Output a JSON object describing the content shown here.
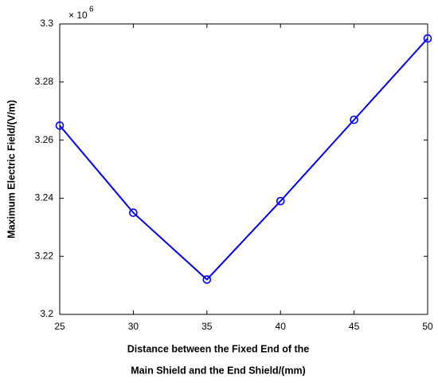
{
  "chart_data": {
    "type": "line",
    "x_label_lines": [
      "Distance between the Fixed End of the",
      "Main Shield and the End Shield/(mm)"
    ],
    "y_label": "Maximum Electric Field/(V/m)",
    "y_multiplier_base": "× 10",
    "y_multiplier_exponent": "6",
    "x": [
      25,
      30,
      35,
      40,
      45,
      50
    ],
    "series": [
      {
        "color": "#0000ff",
        "values": [
          3.265,
          3.235,
          3.212,
          3.239,
          3.267,
          3.295
        ]
      }
    ],
    "xlim": [
      25,
      50
    ],
    "xticks": [
      25,
      30,
      35,
      40,
      45,
      50
    ],
    "ylim": [
      3.2,
      3.3
    ],
    "yticks": [
      3.2,
      3.22,
      3.24,
      3.26,
      3.28,
      3.3
    ],
    "grid": false,
    "marker": "circle"
  }
}
